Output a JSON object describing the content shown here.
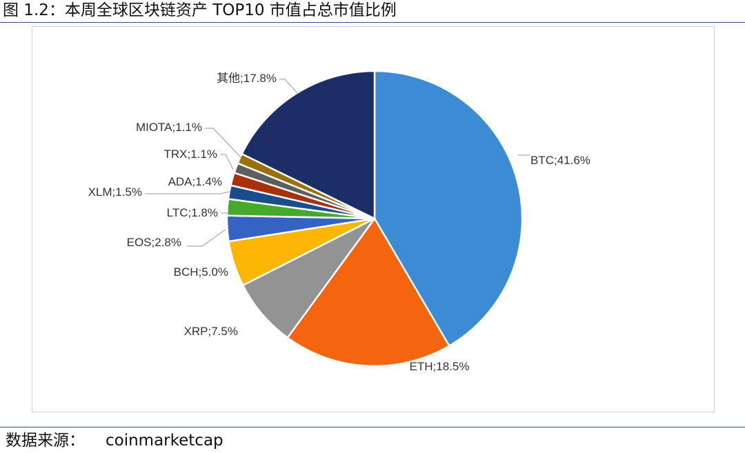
{
  "figure_title": "图 1.2：本周全球区块链资产 TOP10 市值占总市值比例",
  "source": {
    "label": "数据来源：",
    "value": "coinmarketcap"
  },
  "chart_data": {
    "type": "pie",
    "title": "",
    "slices": [
      {
        "name": "BTC",
        "value": 41.6,
        "label": "BTC;41.6%",
        "color": "#3d8bd4"
      },
      {
        "name": "ETH",
        "value": 18.5,
        "label": "ETH;18.5%",
        "color": "#f5640f"
      },
      {
        "name": "XRP",
        "value": 7.5,
        "label": "XRP;7.5%",
        "color": "#939393"
      },
      {
        "name": "BCH",
        "value": 5.0,
        "label": "BCH;5.0%",
        "color": "#fdb606"
      },
      {
        "name": "EOS",
        "value": 2.8,
        "label": "EOS;2.8%",
        "color": "#3463c4"
      },
      {
        "name": "LTC",
        "value": 1.8,
        "label": "LTC;1.8%",
        "color": "#46a92c"
      },
      {
        "name": "XLM",
        "value": 1.5,
        "label": "XLM;1.5%",
        "color": "#1a4d8c"
      },
      {
        "name": "ADA",
        "value": 1.4,
        "label": "ADA;1.4%",
        "color": "#a8300a"
      },
      {
        "name": "TRX",
        "value": 1.1,
        "label": "TRX;1.1%",
        "color": "#5e5e5e"
      },
      {
        "name": "MIOTA",
        "value": 1.1,
        "label": "MIOTA;1.1%",
        "color": "#9c7008"
      },
      {
        "name": "其他",
        "value": 17.8,
        "label": "其他;17.8%",
        "color": "#1b2f66"
      }
    ],
    "start": "12 o'clock",
    "direction": "clockwise",
    "legend": "none"
  }
}
